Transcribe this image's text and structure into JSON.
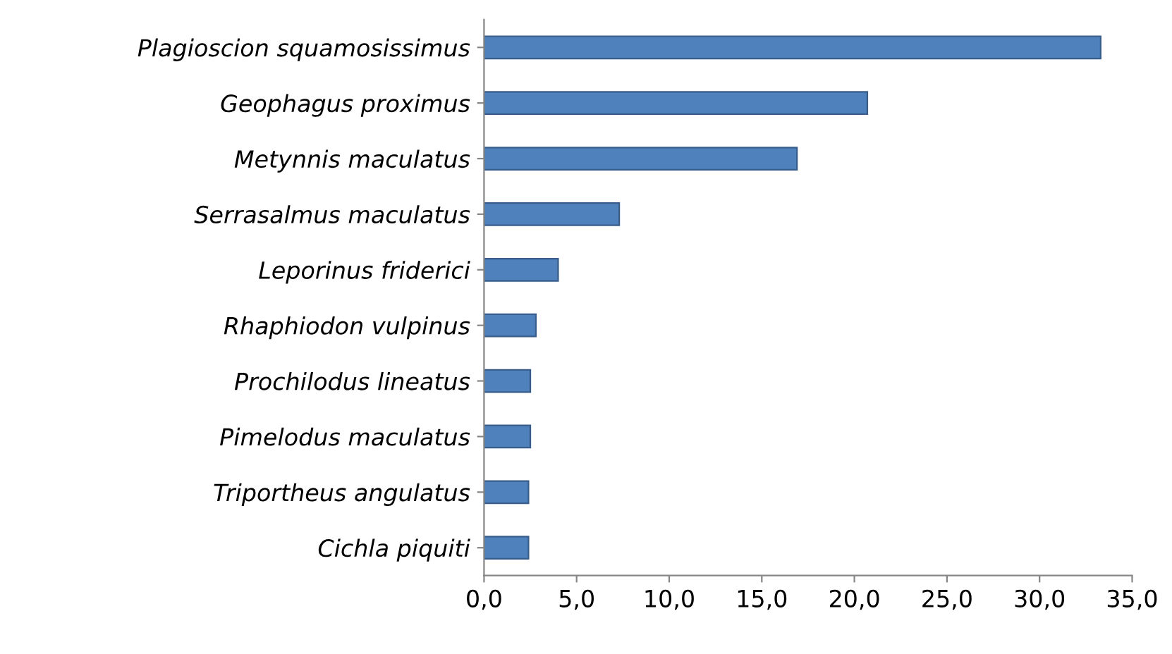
{
  "chart_data": {
    "type": "bar",
    "orientation": "horizontal",
    "categories": [
      "Plagioscion squamosissimus",
      "Geophagus proximus",
      "Metynnis maculatus",
      "Serrasalmus maculatus",
      "Leporinus friderici",
      "Rhaphiodon vulpinus",
      "Prochilodus lineatus",
      "Pimelodus maculatus",
      "Triportheus angulatus",
      "Cichla piquiti"
    ],
    "values": [
      33.3,
      20.7,
      16.9,
      7.3,
      4.0,
      2.8,
      2.5,
      2.5,
      2.4,
      2.4
    ],
    "color": "#4f81bd",
    "xlim": [
      0,
      35
    ],
    "xticks": [
      {
        "value": 0,
        "label": "0,0"
      },
      {
        "value": 5,
        "label": "5,0"
      },
      {
        "value": 10,
        "label": "10,0"
      },
      {
        "value": 15,
        "label": "15,0"
      },
      {
        "value": 20,
        "label": "20,0"
      },
      {
        "value": 25,
        "label": "25,0"
      },
      {
        "value": 30,
        "label": "30,0"
      },
      {
        "value": 35,
        "label": "35,0"
      }
    ],
    "grid": false,
    "legend": false
  }
}
